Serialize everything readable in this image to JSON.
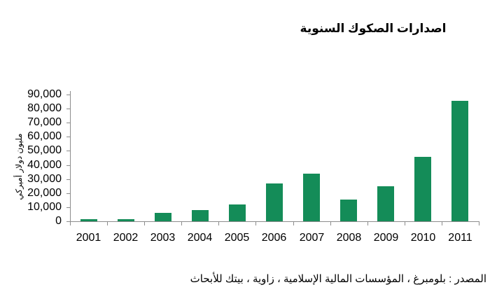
{
  "chart_data": {
    "type": "bar",
    "title": "اصدارات الصكوك السنوية",
    "ylabel": "مليون دولار أميركي",
    "xlabel": "",
    "categories": [
      "2001",
      "2002",
      "2003",
      "2004",
      "2005",
      "2006",
      "2007",
      "2008",
      "2009",
      "2010",
      "2011"
    ],
    "values": [
      1500,
      1500,
      6000,
      8000,
      12000,
      27000,
      34000,
      15500,
      25000,
      45500,
      85500
    ],
    "ylim": [
      0,
      90000
    ],
    "ytick_step": 10000,
    "ytick_labels": [
      "0",
      "10,000",
      "20,000",
      "30,000",
      "40,000",
      "50,000",
      "60,000",
      "70,000",
      "80,000",
      "90,000"
    ],
    "grid": false,
    "legend": "none",
    "colors": {
      "bar": "#148C58",
      "axis": "#8C8C8C",
      "text": "#000000",
      "background": "#FFFFFF"
    }
  },
  "source_note": "المصدر : بلومبرغ ، المؤسسات المالية الإسلامية ، زاوية ، بيتك للأبحاث"
}
